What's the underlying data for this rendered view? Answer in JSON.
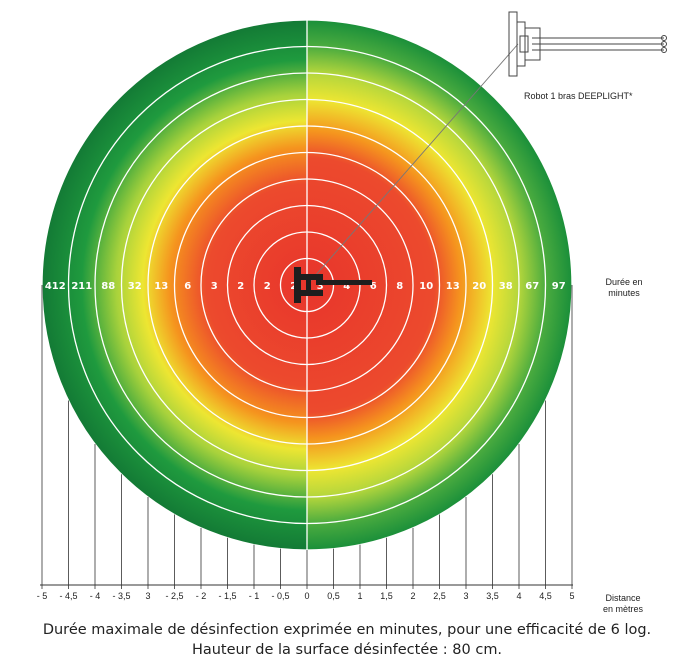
{
  "diagram": {
    "robot_label": "Robot 1 bras DEEPLIGHT*",
    "duration_label": [
      "Durée en",
      "minutes"
    ],
    "distance_label": [
      "Distance",
      "en mètres"
    ],
    "left_values": [
      "412",
      "211",
      "88",
      "32",
      "13",
      "6",
      "3",
      "2",
      "2",
      "2"
    ],
    "right_values": [
      "3",
      "4",
      "6",
      "8",
      "10",
      "13",
      "20",
      "38",
      "67",
      "97"
    ],
    "distance_ticks": [
      "- 5",
      "- 4,5",
      "- 4",
      "- 3,5",
      "3",
      "- 2,5",
      "- 2",
      "- 1,5",
      "- 1",
      "- 0,5",
      "0",
      "0,5",
      "1",
      "1,5",
      "2",
      "2,5",
      "3",
      "3,5",
      "4",
      "4,5",
      "5"
    ],
    "colors": {
      "center": "#e8352c",
      "orange": "#f5941e",
      "yellow": "#ede632",
      "green": "#1a8f3a",
      "dark_green": "#137a35"
    }
  },
  "caption": {
    "line1": "Durée maximale de désinfection exprimée en minutes, pour une efficacité de 6 log.",
    "line2": "Hauteur de la surface désinfectée : 80 cm."
  }
}
